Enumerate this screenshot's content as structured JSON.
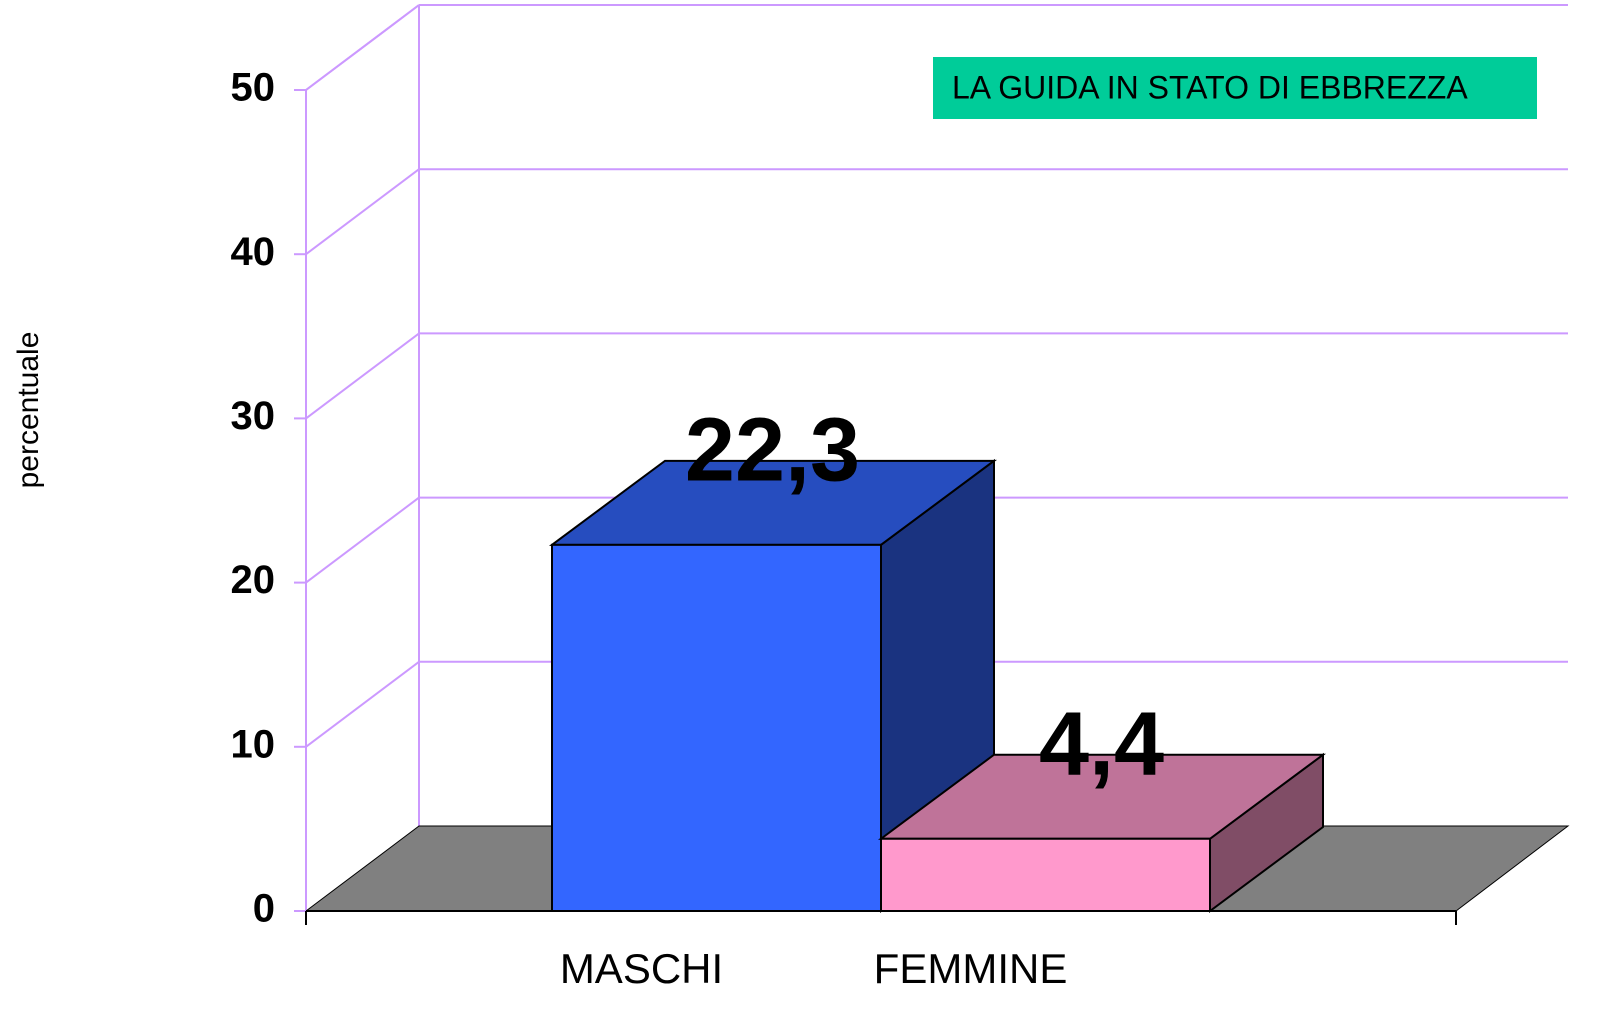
{
  "chart_data": {
    "type": "bar3d",
    "annotation": "LA GUIDA IN STATO DI EBBREZZA",
    "ylabel": "percentuale",
    "categories": [
      "MASCHI",
      "FEMMINE"
    ],
    "values": [
      22.3,
      4.4
    ],
    "value_labels": [
      "22,3",
      "4,4"
    ],
    "colors": [
      "#3366ff",
      "#ff99cc"
    ],
    "ylim": [
      0,
      50
    ],
    "yticks": [
      0,
      10,
      20,
      30,
      40,
      50
    ],
    "grid": true
  }
}
